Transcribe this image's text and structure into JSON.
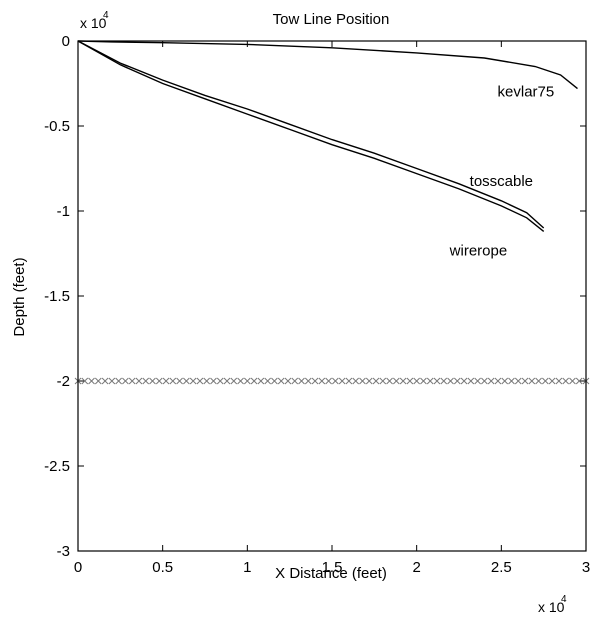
{
  "chart_data": {
    "type": "line",
    "title": "Tow Line Position",
    "xlabel": "X Distance (feet)",
    "ylabel": "Depth (feet)",
    "x_multiplier_label": "x 10",
    "y_multiplier_label": "x 10",
    "multiplier_exponent": "4",
    "xlim": [
      0,
      3
    ],
    "ylim": [
      -3,
      0
    ],
    "x_ticks": [
      0,
      0.5,
      1,
      1.5,
      2,
      2.5,
      3
    ],
    "x_tick_labels": [
      "0",
      "0.5",
      "1",
      "1.5",
      "2",
      "2.5",
      "3"
    ],
    "y_ticks": [
      0,
      -0.5,
      -1,
      -1.5,
      -2,
      -2.5,
      -3
    ],
    "y_tick_labels": [
      "0",
      "-0.5",
      "-1",
      "-1.5",
      "-2",
      "-2.5",
      "-3"
    ],
    "grid": false,
    "series": [
      {
        "name": "kevlar75",
        "label": "kevlar75",
        "color": "#000000",
        "x": [
          0,
          0.2,
          0.5,
          1.0,
          1.5,
          2.0,
          2.4,
          2.7,
          2.85,
          2.95
        ],
        "y": [
          0,
          -0.005,
          -0.01,
          -0.02,
          -0.04,
          -0.07,
          -0.1,
          -0.15,
          -0.2,
          -0.28
        ]
      },
      {
        "name": "tosscable",
        "label": "tosscable",
        "color": "#000000",
        "x": [
          0,
          0.25,
          0.5,
          0.75,
          1.0,
          1.25,
          1.5,
          1.75,
          2.0,
          2.25,
          2.5,
          2.65,
          2.75
        ],
        "y": [
          0,
          -0.13,
          -0.23,
          -0.32,
          -0.4,
          -0.49,
          -0.58,
          -0.66,
          -0.75,
          -0.84,
          -0.94,
          -1.01,
          -1.1
        ]
      },
      {
        "name": "wirerope",
        "label": "wirerope",
        "color": "#000000",
        "x": [
          0,
          0.25,
          0.5,
          0.75,
          1.0,
          1.25,
          1.5,
          1.75,
          2.0,
          2.25,
          2.5,
          2.65,
          2.75
        ],
        "y": [
          0,
          -0.14,
          -0.25,
          -0.34,
          -0.43,
          -0.52,
          -0.61,
          -0.69,
          -0.78,
          -0.87,
          -0.97,
          -1.04,
          -1.12
        ]
      }
    ],
    "reference_line": {
      "marker": "x",
      "color": "#777777",
      "y": -2.0,
      "x_start": 0,
      "x_end": 3,
      "x_step": 0.04
    }
  }
}
